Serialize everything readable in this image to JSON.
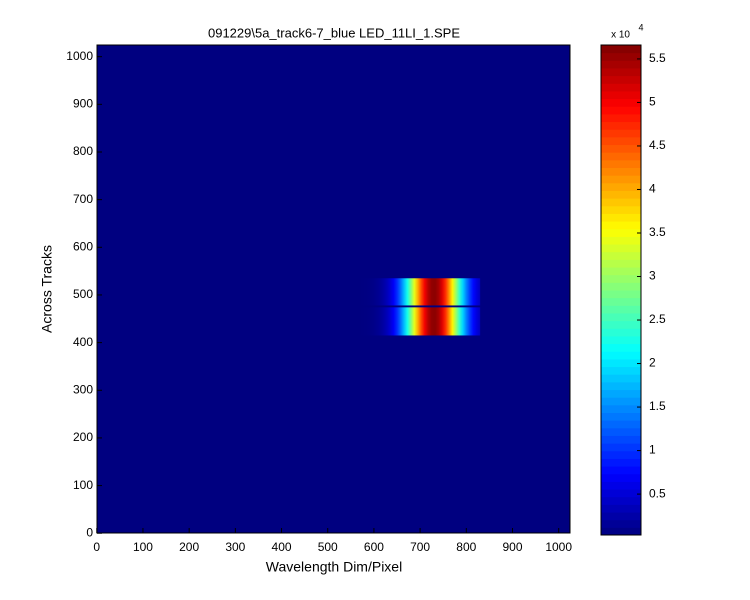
{
  "chart_data": {
    "type": "image",
    "title": "091229\\5a_track6-7_blue LED_11LI_1.SPE",
    "x_label": "Wavelength Dim/Pixel",
    "y_label": "Across Tracks",
    "xlim": [
      0.5,
      1024.5
    ],
    "ylim": [
      0.5,
      1024.5
    ],
    "xticks": [
      0,
      100,
      200,
      300,
      400,
      500,
      600,
      700,
      800,
      900,
      1000
    ],
    "yticks": [
      0,
      100,
      200,
      300,
      400,
      500,
      600,
      700,
      800,
      900,
      1000
    ],
    "colormap": "jet",
    "clim": [
      300,
      56600
    ],
    "background_value": 300,
    "colorbar_ticks": [
      {
        "value": 5000,
        "label": "0.5"
      },
      {
        "value": 10000,
        "label": "1"
      },
      {
        "value": 15000,
        "label": "1.5"
      },
      {
        "value": 20000,
        "label": "2"
      },
      {
        "value": 25000,
        "label": "2.5"
      },
      {
        "value": 30000,
        "label": "3"
      },
      {
        "value": 35000,
        "label": "3.5"
      },
      {
        "value": 40000,
        "label": "4"
      },
      {
        "value": 45000,
        "label": "4.5"
      },
      {
        "value": 50000,
        "label": "5"
      },
      {
        "value": 55000,
        "label": "5.5"
      }
    ],
    "colorbar_multiplier": {
      "base": "x 10",
      "exponent": "4"
    },
    "bands": [
      {
        "x": [
          530,
          830
        ],
        "y": [
          478,
          535
        ],
        "peak_x": 730,
        "peak": 56000
      },
      {
        "x": [
          530,
          830
        ],
        "y": [
          415,
          474
        ],
        "peak_x": 730,
        "peak": 56000
      }
    ]
  }
}
